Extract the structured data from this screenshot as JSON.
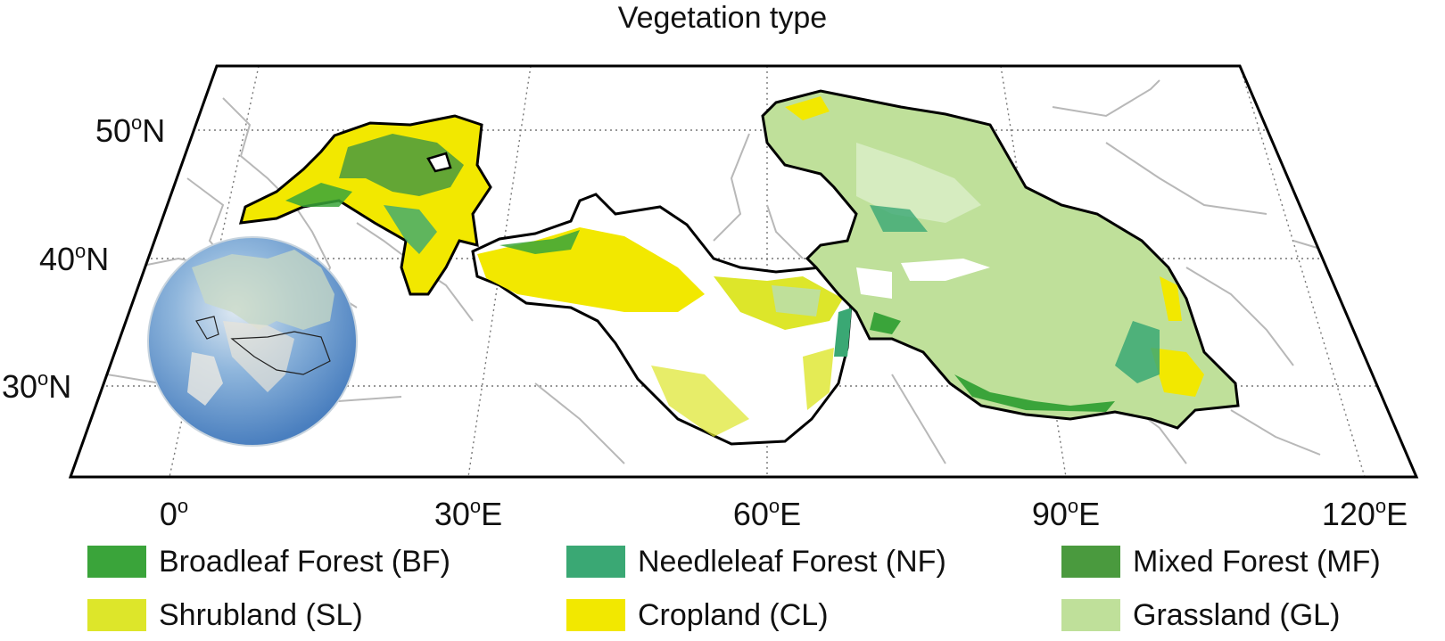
{
  "title": "Vegetation type",
  "lat_labels": [
    {
      "deg": "50",
      "sup": "o",
      "suffix": "N"
    },
    {
      "deg": "40",
      "sup": "o",
      "suffix": "N"
    },
    {
      "deg": "30",
      "sup": "o",
      "suffix": "N"
    }
  ],
  "lon_labels": [
    {
      "deg": "0",
      "sup": "o",
      "suffix": ""
    },
    {
      "deg": "30",
      "sup": "o",
      "suffix": "E"
    },
    {
      "deg": "60",
      "sup": "o",
      "suffix": "E"
    },
    {
      "deg": "90",
      "sup": "o",
      "suffix": "E"
    },
    {
      "deg": "120",
      "sup": "o",
      "suffix": "E"
    }
  ],
  "legend": [
    {
      "label": "Broadleaf Forest (BF)",
      "color": "#3aa43a"
    },
    {
      "label": "Needleleaf Forest (NF)",
      "color": "#3aa874"
    },
    {
      "label": "Mixed Forest (MF)",
      "color": "#4a9a3e"
    },
    {
      "label": "Shrubland (SL)",
      "color": "#dde62a"
    },
    {
      "label": "Cropland (CL)",
      "color": "#f2e800"
    },
    {
      "label": "Grassland (GL)",
      "color": "#bfe09a"
    }
  ]
}
